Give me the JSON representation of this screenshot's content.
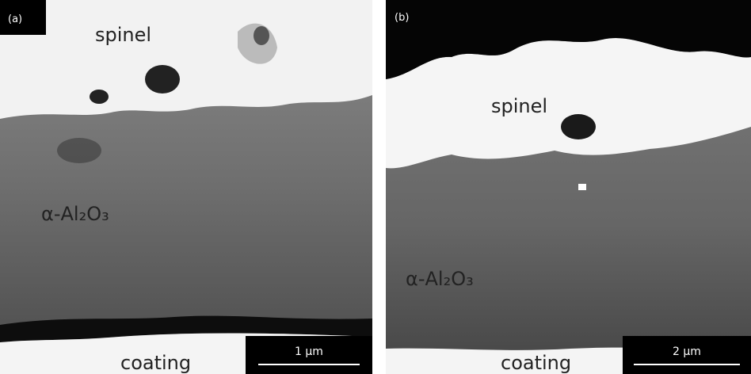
{
  "panels": [
    {
      "label": "(a)",
      "phases": {
        "top": "spinel",
        "middle": "α-Al₂O₃",
        "bottom": "coating"
      },
      "scale_bar": "1 μm"
    },
    {
      "label": "(b)",
      "phases": {
        "top": "spinel",
        "middle": "α-Al₂O₃",
        "bottom": "coating"
      },
      "scale_bar": "2 μm"
    }
  ]
}
